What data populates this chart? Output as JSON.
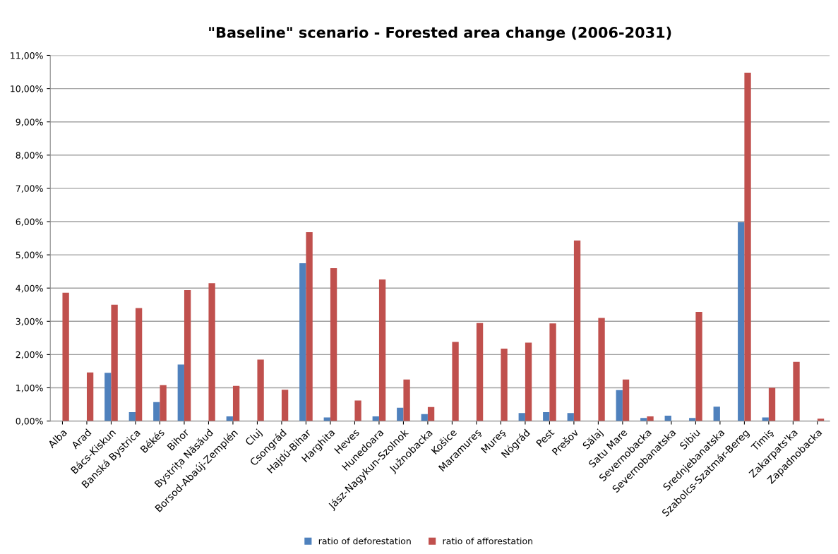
{
  "chart_data": {
    "type": "bar",
    "title": "\"Baseline\" scenario - Forested area change (2006-2031)",
    "categories": [
      "Alba",
      "Arad",
      "Bács-Kiskun",
      "Banská Bystrica",
      "Békés",
      "Bihor",
      "Bystrița Năsăud",
      "Borsod-Abaúj-Zemplén",
      "Cluj",
      "Csongrád",
      "Hajdú-Bihar",
      "Harghita",
      "Heves",
      "Hunedoara",
      "Jász-Nagykun-Szolnok",
      "Južnobacka",
      "Košice",
      "Maramureş",
      "Mureş",
      "Nógrád",
      "Pest",
      "Prešov",
      "Sălaj",
      "Satu Mare",
      "Severnobacka",
      "Severnobanatska",
      "Sibiu",
      "Srednjebanatska",
      "Szabolcs-Szatmár-Bereg",
      "Timiş",
      "Zakarpats'ka",
      "Zapadnobacka"
    ],
    "series": [
      {
        "name": "ratio of deforestation",
        "color": "#4f81bd",
        "values": [
          0,
          0,
          1.45,
          0.27,
          0.57,
          1.7,
          0,
          0.14,
          0,
          0,
          4.75,
          0.11,
          0,
          0.14,
          0.4,
          0.21,
          0,
          0,
          null,
          0.24,
          0.27,
          0.24,
          0,
          0.93,
          0.09,
          0.16,
          0.09,
          0.43,
          5.98,
          0.11,
          0,
          null
        ]
      },
      {
        "name": "ratio of afforestation",
        "color": "#c0504d",
        "values": [
          3.86,
          1.46,
          3.5,
          3.4,
          1.08,
          3.94,
          4.15,
          1.06,
          1.85,
          0.94,
          5.68,
          4.6,
          0.62,
          4.26,
          1.25,
          0.42,
          2.38,
          2.95,
          2.18,
          2.36,
          2.94,
          5.43,
          3.1,
          1.25,
          0.14,
          0,
          3.28,
          null,
          10.48,
          1.0,
          1.78,
          0.07
        ]
      }
    ],
    "ylim": [
      0,
      11
    ],
    "yticks": [
      {
        "value": 0,
        "label": "0,00%"
      },
      {
        "value": 1,
        "label": "1,00%"
      },
      {
        "value": 2,
        "label": "2,00%"
      },
      {
        "value": 3,
        "label": "3,00%"
      },
      {
        "value": 4,
        "label": "4,00%"
      },
      {
        "value": 5,
        "label": "5,00%"
      },
      {
        "value": 6,
        "label": "6,00%"
      },
      {
        "value": 7,
        "label": "7,00%"
      },
      {
        "value": 8,
        "label": "8,00%"
      },
      {
        "value": 9,
        "label": "9,00%"
      },
      {
        "value": 10,
        "label": "10,00%"
      },
      {
        "value": 11,
        "label": "11,00%"
      }
    ],
    "grid": "y",
    "legend": "bottom"
  }
}
